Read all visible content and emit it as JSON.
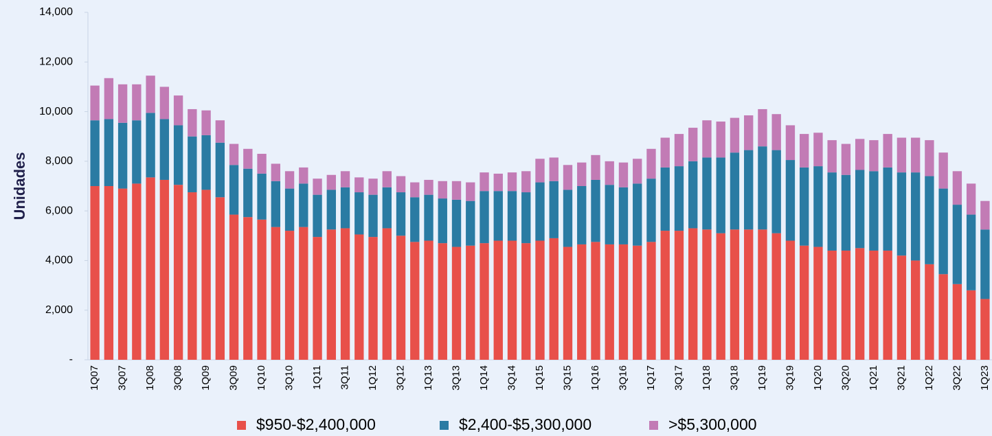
{
  "chart_data": {
    "type": "stacked_bar",
    "y_label": "Unidades",
    "categories": [
      "1Q07",
      null,
      "3Q07",
      null,
      "1Q08",
      null,
      "3Q08",
      null,
      "1Q09",
      null,
      "3Q09",
      null,
      "1Q10",
      null,
      "3Q10",
      null,
      "1Q11",
      null,
      "3Q11",
      null,
      "1Q12",
      null,
      "3Q12",
      null,
      "1Q13",
      null,
      "3Q13",
      null,
      "1Q14",
      null,
      "3Q14",
      null,
      "1Q15",
      null,
      "3Q15",
      null,
      "1Q16",
      null,
      "3Q16",
      null,
      "1Q17",
      null,
      "3Q17",
      null,
      "1Q18",
      null,
      "3Q18",
      null,
      "1Q19",
      null,
      "3Q19",
      null,
      "1Q20",
      null,
      "3Q20",
      null,
      "1Q21",
      null,
      "3Q21",
      null,
      "1Q22",
      null,
      "3Q22",
      null,
      "1Q23"
    ],
    "series": [
      {
        "name": "$950-$2,400,000",
        "color": "#e8504a",
        "values": [
          7000,
          7000,
          6900,
          7100,
          7350,
          7250,
          7050,
          6750,
          6850,
          6550,
          5850,
          5750,
          5650,
          5350,
          5200,
          5350,
          4950,
          5250,
          5300,
          5050,
          4950,
          5300,
          5000,
          4750,
          4800,
          4700,
          4550,
          4600,
          4700,
          4800,
          4800,
          4700,
          4800,
          4900,
          4550,
          4650,
          4750,
          4650,
          4650,
          4600,
          4750,
          5200,
          5200,
          5300,
          5250,
          5100,
          5250,
          5250,
          5250,
          5100,
          4800,
          4600,
          4550,
          4400,
          4400,
          4500,
          4400,
          4400,
          4200,
          4000,
          3850,
          3450,
          3050,
          2800,
          2450
        ]
      },
      {
        "name": "$2,400-$5,300,000",
        "color": "#2a7ba3",
        "values": [
          2650,
          2700,
          2650,
          2550,
          2600,
          2450,
          2400,
          2250,
          2200,
          2200,
          2000,
          1950,
          1850,
          1850,
          1700,
          1750,
          1700,
          1600,
          1650,
          1700,
          1700,
          1650,
          1750,
          1800,
          1850,
          1800,
          1900,
          1800,
          2100,
          2000,
          2000,
          2050,
          2350,
          2300,
          2300,
          2350,
          2500,
          2400,
          2300,
          2500,
          2550,
          2550,
          2600,
          2700,
          2900,
          3050,
          3100,
          3200,
          3350,
          3350,
          3250,
          3150,
          3250,
          3150,
          3050,
          3150,
          3200,
          3350,
          3350,
          3550,
          3550,
          3450,
          3200,
          3050,
          2800
        ]
      },
      {
        "name": ">$5,300,000",
        "color": "#c27bb5",
        "values": [
          1400,
          1650,
          1550,
          1450,
          1500,
          1300,
          1200,
          1100,
          1000,
          900,
          850,
          800,
          800,
          700,
          700,
          650,
          650,
          600,
          650,
          600,
          650,
          650,
          650,
          600,
          600,
          700,
          750,
          750,
          750,
          700,
          750,
          850,
          950,
          950,
          1000,
          950,
          1000,
          950,
          1000,
          1000,
          1200,
          1200,
          1300,
          1350,
          1500,
          1450,
          1400,
          1400,
          1500,
          1450,
          1400,
          1350,
          1350,
          1300,
          1250,
          1250,
          1250,
          1350,
          1400,
          1400,
          1450,
          1450,
          1350,
          1250,
          1150
        ]
      }
    ],
    "ylim": [
      0,
      14000
    ],
    "yticks": [
      {
        "value": 0,
        "label": "-"
      },
      {
        "value": 2000,
        "label": "2,000"
      },
      {
        "value": 4000,
        "label": "4,000"
      },
      {
        "value": 6000,
        "label": "6,000"
      },
      {
        "value": 8000,
        "label": "8,000"
      },
      {
        "value": 10000,
        "label": "10,000"
      },
      {
        "value": 12000,
        "label": "12,000"
      },
      {
        "value": 14000,
        "label": "14,000"
      }
    ],
    "legend": "bottom"
  }
}
